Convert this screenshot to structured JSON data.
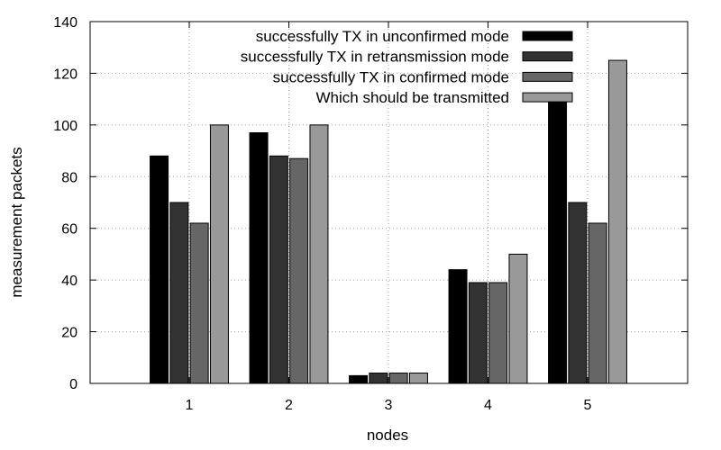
{
  "chart_data": {
    "type": "bar",
    "xlabel": "nodes",
    "ylabel": "measurement packets",
    "ylim": [
      0,
      140
    ],
    "yticks": [
      0,
      20,
      40,
      60,
      80,
      100,
      120,
      140
    ],
    "categories": [
      "1",
      "2",
      "3",
      "4",
      "5"
    ],
    "grid": true,
    "legend_position": "top-right",
    "series": [
      {
        "name": "successfully TX in unconfirmed mode",
        "color": "#000000",
        "values": [
          88,
          97,
          3,
          44,
          110
        ]
      },
      {
        "name": "successfully TX in retransmission mode",
        "color": "#333333",
        "values": [
          70,
          88,
          4,
          39,
          70
        ]
      },
      {
        "name": "successfully TX in confirmed mode",
        "color": "#666666",
        "values": [
          62,
          87,
          4,
          39,
          62
        ]
      },
      {
        "name": "Which should be transmitted",
        "color": "#999999",
        "values": [
          100,
          100,
          4,
          50,
          125
        ]
      }
    ]
  }
}
